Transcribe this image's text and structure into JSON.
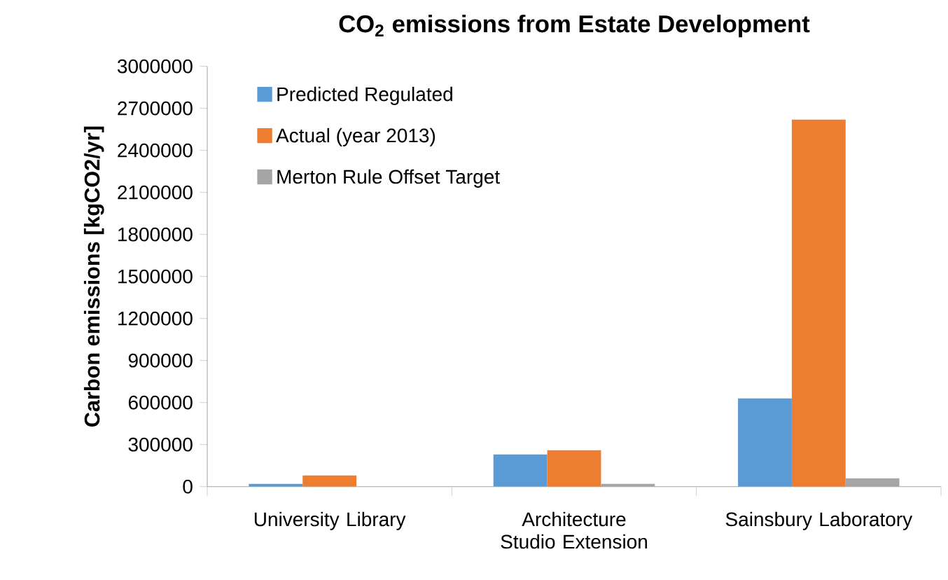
{
  "chart_data": {
    "type": "bar",
    "title": "CO$_{2}$ emissions from Estate Development",
    "ylabel": "Carbon emissions [kgCO2/yr]",
    "categories": [
      "University Library",
      "Architecture Studio Extension",
      "Sainsbury Laboratory"
    ],
    "series": [
      {
        "name": "Predicted Regulated",
        "color": "#5b9bd5",
        "values": [
          20000,
          230000,
          630000
        ]
      },
      {
        "name": "Actual (year 2013)",
        "color": "#ed7d31",
        "values": [
          80000,
          260000,
          2620000
        ]
      },
      {
        "name": "Merton Rule Offset Target",
        "color": "#a5a5a5",
        "values": [
          null,
          20000,
          60000
        ]
      }
    ],
    "ylim": [
      0,
      3000000
    ],
    "yticks": [
      0,
      300000,
      600000,
      900000,
      1200000,
      1500000,
      1800000,
      2100000,
      2400000,
      2700000,
      3000000
    ],
    "legend": "top left"
  }
}
